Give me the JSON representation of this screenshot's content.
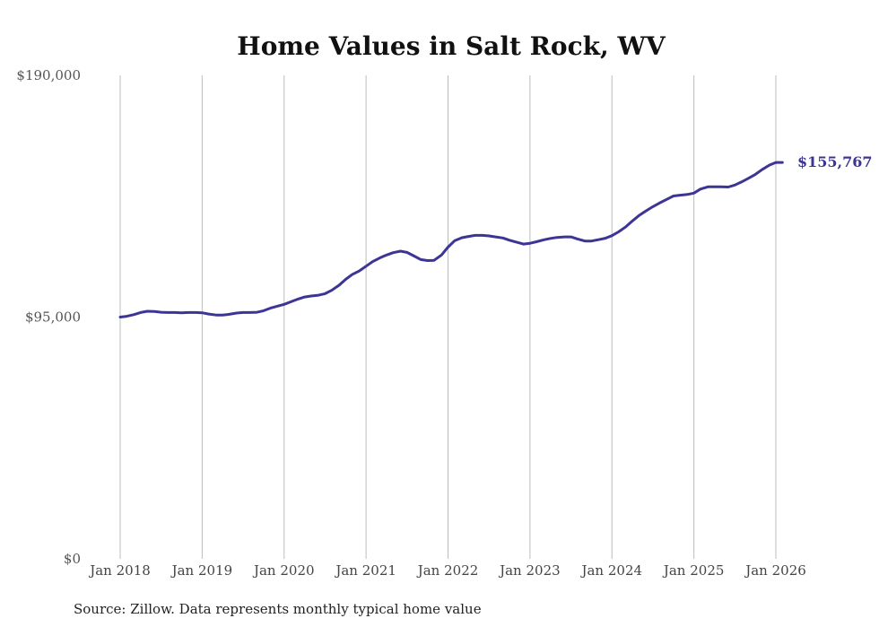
{
  "chart_data": {
    "type": "line",
    "title": "Home Values in Salt Rock, WV",
    "xlabel": "",
    "ylabel": "",
    "ylim": [
      0,
      190000
    ],
    "yticks": [
      {
        "value": 0,
        "label": "$0"
      },
      {
        "value": 95000,
        "label": "$95,000"
      },
      {
        "value": 190000,
        "label": "$190,000"
      }
    ],
    "xlim": [
      2018.0,
      2026.08
    ],
    "xticks": [
      {
        "value": 2018,
        "label": "Jan 2018"
      },
      {
        "value": 2019,
        "label": "Jan 2019"
      },
      {
        "value": 2020,
        "label": "Jan 2020"
      },
      {
        "value": 2021,
        "label": "Jan 2021"
      },
      {
        "value": 2022,
        "label": "Jan 2022"
      },
      {
        "value": 2023,
        "label": "Jan 2023"
      },
      {
        "value": 2024,
        "label": "Jan 2024"
      },
      {
        "value": 2025,
        "label": "Jan 2025"
      },
      {
        "value": 2026,
        "label": "Jan 2026"
      }
    ],
    "grid": "vertical",
    "series": [
      {
        "name": "Typical home value",
        "color": "#3d3595",
        "x": [
          2018.0,
          2018.08,
          2018.17,
          2018.25,
          2018.33,
          2018.42,
          2018.5,
          2018.58,
          2018.67,
          2018.75,
          2018.83,
          2018.92,
          2019.0,
          2019.08,
          2019.17,
          2019.25,
          2019.33,
          2019.42,
          2019.5,
          2019.58,
          2019.67,
          2019.75,
          2019.83,
          2019.92,
          2020.0,
          2020.08,
          2020.17,
          2020.25,
          2020.33,
          2020.42,
          2020.5,
          2020.58,
          2020.67,
          2020.75,
          2020.83,
          2020.92,
          2021.0,
          2021.08,
          2021.17,
          2021.25,
          2021.33,
          2021.42,
          2021.5,
          2021.58,
          2021.67,
          2021.75,
          2021.83,
          2021.92,
          2022.0,
          2022.08,
          2022.17,
          2022.25,
          2022.33,
          2022.42,
          2022.5,
          2022.58,
          2022.67,
          2022.75,
          2022.83,
          2022.92,
          2023.0,
          2023.08,
          2023.17,
          2023.25,
          2023.33,
          2023.42,
          2023.5,
          2023.58,
          2023.67,
          2023.75,
          2023.83,
          2023.92,
          2024.0,
          2024.08,
          2024.17,
          2024.25,
          2024.33,
          2024.42,
          2024.5,
          2024.58,
          2024.67,
          2024.75,
          2024.83,
          2024.92,
          2025.0,
          2025.08,
          2025.17,
          2025.25,
          2025.33,
          2025.42,
          2025.5,
          2025.58,
          2025.67,
          2025.75,
          2025.83,
          2025.92,
          2026.0,
          2026.08
        ],
        "values": [
          95000,
          95300,
          96000,
          96800,
          97300,
          97200,
          96900,
          96800,
          96800,
          96700,
          96800,
          96800,
          96700,
          96200,
          95800,
          95800,
          96100,
          96600,
          96800,
          96800,
          96900,
          97500,
          98500,
          99300,
          100000,
          101000,
          102100,
          102900,
          103300,
          103600,
          104200,
          105500,
          107500,
          109800,
          111700,
          113200,
          115000,
          116800,
          118300,
          119400,
          120300,
          120900,
          120400,
          119100,
          117600,
          117200,
          117300,
          119400,
          122500,
          125000,
          126200,
          126700,
          127100,
          127100,
          126900,
          126500,
          126100,
          125200,
          124500,
          123700,
          124000,
          124600,
          125400,
          125900,
          126300,
          126500,
          126500,
          125700,
          124900,
          124900,
          125400,
          126000,
          127000,
          128500,
          130500,
          132800,
          134900,
          136800,
          138400,
          139800,
          141300,
          142600,
          142900,
          143200,
          143700,
          145300,
          146200,
          146200,
          146200,
          146100,
          146900,
          148100,
          149600,
          151100,
          152900,
          154700,
          155767,
          155767
        ]
      }
    ],
    "end_label": "$155,767",
    "source": "Source: Zillow. Data represents monthly typical home value"
  }
}
